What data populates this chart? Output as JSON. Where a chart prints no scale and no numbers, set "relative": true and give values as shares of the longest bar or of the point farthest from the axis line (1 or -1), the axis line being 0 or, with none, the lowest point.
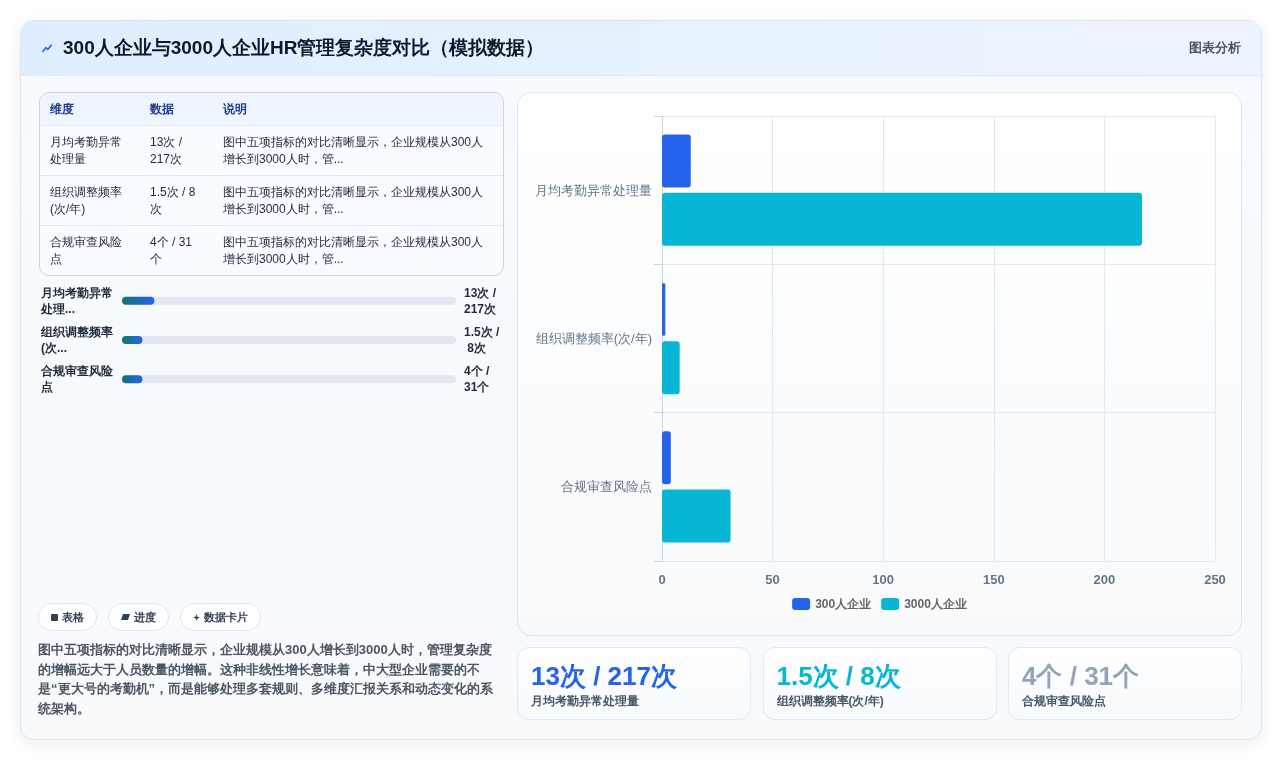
{
  "chart_data": [
    {
      "type": "other",
      "title": "300人企业与3000人企业HR管理复杂度对比（模拟数据）",
      "annotations": [
        "图表分析"
      ]
    },
    {
      "type": "other",
      "annotations": [
        "维度",
        "数据",
        "说明",
        "月均考勤异常处理量",
        "13次 / 217次",
        "图中五项指标的对比清晰显示，企业规模从300人增长到3000人时，管...",
        "组织调整频率(次/年)",
        "1.5次 / 8次",
        "图中五项指标的对比清晰显示，企业规模从300人增长到3000人时，管...",
        "合规审查风险点",
        "4个 / 31个",
        "图中五项指标的对比清晰显示，企业规模从300人增长到3000人时，管..."
      ]
    },
    {
      "type": "bar",
      "orientation": "horizontal",
      "relative": true,
      "categories": [
        "月均考勤异常处理...",
        "组织调整频率(次...",
        "合规审查风险点"
      ],
      "values": [
        1,
        0.63,
        0.63
      ],
      "annotations": [
        "13次 / 217次",
        "1.5次 / 8次",
        "4个 / 31个"
      ],
      "color": "#2563eb"
    },
    {
      "type": "other",
      "annotations": [
        "表格",
        "进度",
        "数据卡片"
      ]
    },
    {
      "type": "other",
      "annotations": [
        "图中五项指标的对比清晰显示，企业规模从300人增长到3000人时，管理复杂度的增幅远大于人员数量的增幅。这种非线性增长意味着，中大型企业需要的不是“更大号的考勤机”，而是能够处理多套规则、多维度汇报关系和动态变化的系统架构。"
      ]
    },
    {
      "type": "bar",
      "orientation": "horizontal",
      "categories": [
        "月均考勤异常处理量",
        "组织调整频率(次/年)",
        "合规审查风险点"
      ],
      "series": [
        {
          "name": "300人企业",
          "color": "#2563eb",
          "values": [
            13,
            1.5,
            4
          ]
        },
        {
          "name": "3000人企业",
          "color": "#06b6d4",
          "values": [
            217,
            8,
            31
          ]
        }
      ],
      "xlim": [
        0,
        250
      ],
      "xticks": [
        0,
        50,
        100,
        150,
        200,
        250
      ],
      "grid": true,
      "legend": "bottom"
    },
    {
      "type": "other",
      "annotations": [
        "13次 / 217次",
        "月均考勤异常处理量",
        "1.5次 / 8次",
        "组织调整频率(次/年)",
        "4个 / 31个",
        "合规审查风险点"
      ],
      "colors": [
        "#2563eb",
        "#06b6d4",
        "#94a3b8"
      ]
    }
  ]
}
